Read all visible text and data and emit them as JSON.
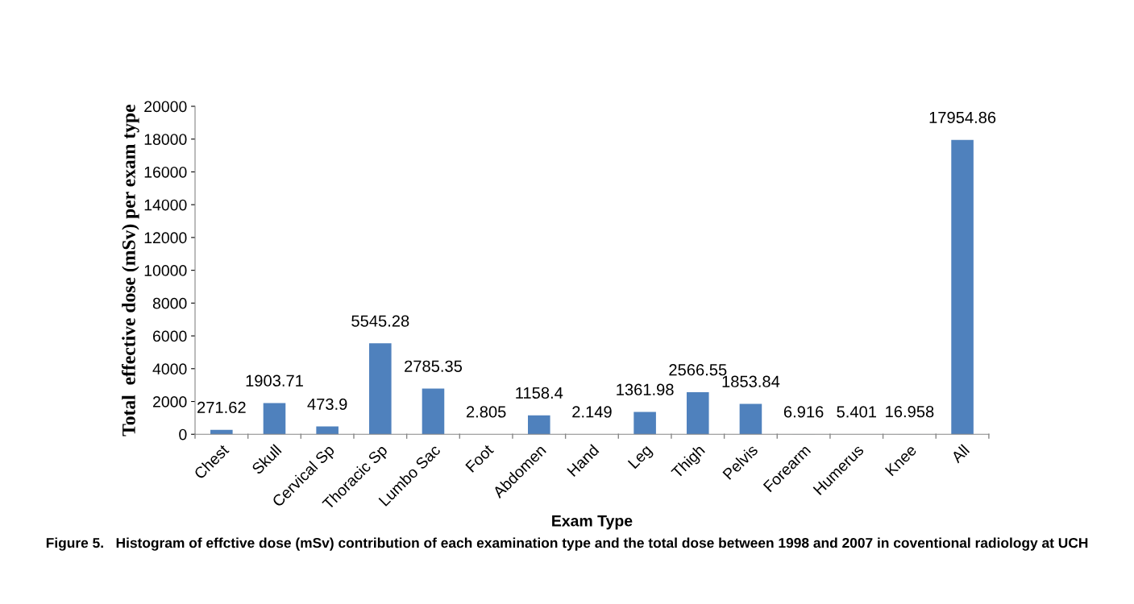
{
  "chart_data": {
    "type": "bar",
    "xlabel": "Exam Type",
    "ylabel": "Total  effective dose (mSv) per exam type",
    "categories": [
      "Chest",
      "Skull",
      "Cervical Sp",
      "Thoracic Sp",
      "Lumbo Sac",
      "Foot",
      "Abdomen",
      "Hand",
      "Leg",
      "Thigh",
      "Pelvis",
      "Forearm",
      "Humerus",
      "Knee",
      "All"
    ],
    "values": [
      271.62,
      1903.71,
      473.9,
      5545.28,
      2785.35,
      2.805,
      1158.4,
      2.149,
      1361.98,
      2566.55,
      1853.84,
      6.916,
      5.401,
      16.958,
      17954.86
    ],
    "color": "#4f81bd",
    "ylim": [
      0,
      20000
    ],
    "yticks": [
      0,
      2000,
      4000,
      6000,
      8000,
      10000,
      12000,
      14000,
      16000,
      18000,
      20000
    ],
    "data_labels": true,
    "grid": false,
    "legend": false,
    "annotations": [
      "Figure 5.   Histogram of effctive dose (mSv) contribution of each examination type and the total dose between 1998 and 2007 in coventional radiology at UCH"
    ]
  }
}
